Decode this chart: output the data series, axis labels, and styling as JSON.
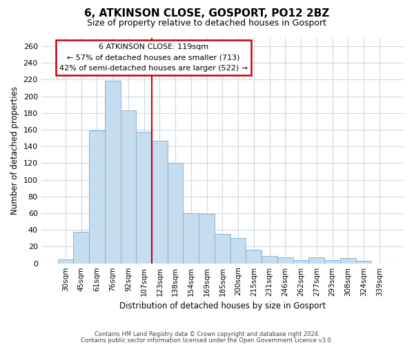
{
  "title": "6, ATKINSON CLOSE, GOSPORT, PO12 2BZ",
  "subtitle": "Size of property relative to detached houses in Gosport",
  "xlabel": "Distribution of detached houses by size in Gosport",
  "ylabel": "Number of detached properties",
  "bar_labels": [
    "30sqm",
    "45sqm",
    "61sqm",
    "76sqm",
    "92sqm",
    "107sqm",
    "123sqm",
    "138sqm",
    "154sqm",
    "169sqm",
    "185sqm",
    "200sqm",
    "215sqm",
    "231sqm",
    "246sqm",
    "262sqm",
    "277sqm",
    "293sqm",
    "308sqm",
    "324sqm",
    "339sqm"
  ],
  "bar_values": [
    5,
    38,
    159,
    219,
    183,
    158,
    147,
    120,
    60,
    59,
    35,
    30,
    16,
    9,
    7,
    4,
    7,
    4,
    6,
    3,
    0
  ],
  "bar_color": "#c6ddf0",
  "bar_edge_color": "#8ab4d4",
  "highlight_line_color": "#cc0000",
  "highlight_line_index": 6,
  "ylim": [
    0,
    270
  ],
  "yticks": [
    0,
    20,
    40,
    60,
    80,
    100,
    120,
    140,
    160,
    180,
    200,
    220,
    240,
    260
  ],
  "annotation_title": "6 ATKINSON CLOSE: 119sqm",
  "annotation_line1": "← 57% of detached houses are smaller (713)",
  "annotation_line2": "42% of semi-detached houses are larger (522) →",
  "annotation_box_color": "#ffffff",
  "annotation_box_edge": "#cc0000",
  "footer_line1": "Contains HM Land Registry data © Crown copyright and database right 2024.",
  "footer_line2": "Contains public sector information licensed under the Open Government Licence v3.0.",
  "background_color": "#ffffff",
  "grid_color": "#ccd8e4"
}
